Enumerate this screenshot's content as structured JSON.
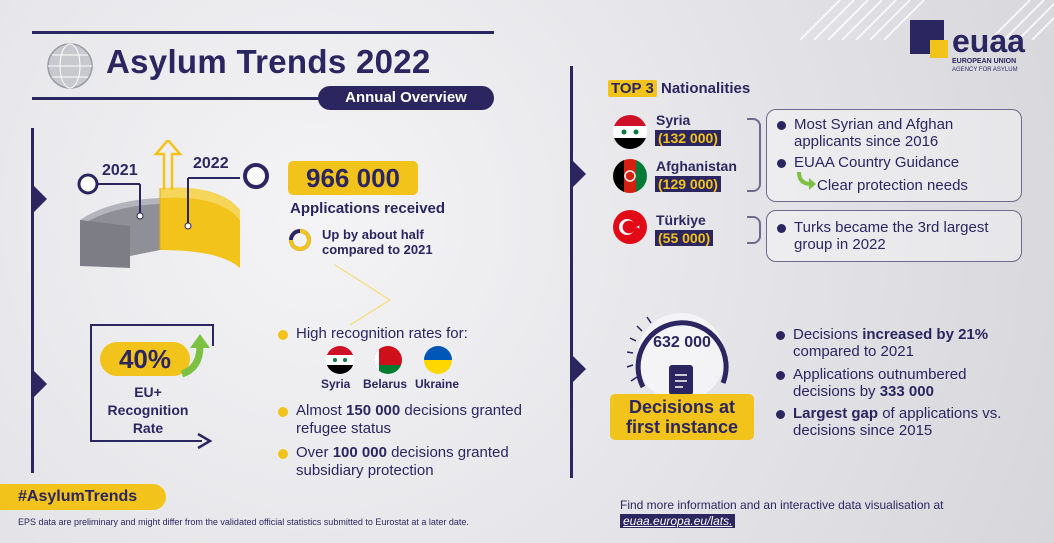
{
  "header": {
    "title": "Asylum Trends 2022",
    "subtitle": "Annual Overview"
  },
  "logo": {
    "name": "euaa",
    "line1": "EUROPEAN UNION",
    "line2": "AGENCY FOR ASYLUM"
  },
  "applications": {
    "year_from": "2021",
    "year_to": "2022",
    "total": "966 000",
    "label": "Applications received",
    "change_text": "Up by about half compared to 2021"
  },
  "recognition": {
    "rate": "40%",
    "label": "EU+ Recognition Rate",
    "high_rates_heading": "High recognition rates for:",
    "countries": [
      "Syria",
      "Belarus",
      "Ukraine"
    ],
    "refugee_prefix": "Almost ",
    "refugee_value": "150 000",
    "refugee_suffix": " decisions granted refugee status",
    "subsidiary_prefix": "Over ",
    "subsidiary_value": "100 000",
    "subsidiary_suffix": " decisions granted subsidiary protection"
  },
  "nationalities": {
    "heading_highlight": "TOP 3",
    "heading_rest": " Nationalities",
    "items": [
      {
        "name": "Syria",
        "value": "(132 000)"
      },
      {
        "name": "Afghanistan",
        "value": "(129 000)"
      },
      {
        "name": "Türkiye",
        "value": "(55 000)"
      }
    ],
    "box1_point1": "Most Syrian and Afghan applicants since 2016",
    "box1_point2": "EUAA Country Guidance",
    "box1_point3": "Clear protection needs",
    "box2_point1": "Turks became the 3rd largest group in 2022"
  },
  "decisions": {
    "total": "632 000",
    "label": "Decisions at first instance",
    "p1_prefix": "Decisions ",
    "p1_bold": "increased by 21%",
    "p1_suffix": " compared to 2021",
    "p2_prefix": "Applications outnumbered decisions by ",
    "p2_bold": "333 000",
    "p3_bold": "Largest gap",
    "p3_suffix": " of applications vs. decisions since 2015"
  },
  "footer": {
    "hashtag": "#AsylumTrends",
    "disclaimer": "EPS data are preliminary and might differ from the validated official statistics submitted to Eurostat at a later date.",
    "more_info": "Find more information and an interactive data visualisation at",
    "link": "euaa.europa.eu/lats."
  },
  "colors": {
    "navy": "#2b2560",
    "yellow": "#f2c31b",
    "red": "#e30a17"
  }
}
